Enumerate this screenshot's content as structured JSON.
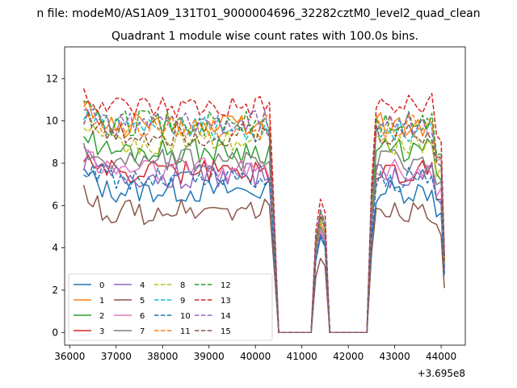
{
  "chart_data": {
    "type": "line",
    "suptitle": "n file: modeM0/AS1A09_131T01_9000004696_32282cztM0_level2_quad_clean",
    "title": "Quadrant 1 module wise count rates with 100.0s bins.",
    "xlabel": "",
    "ylabel": "",
    "x_offset_label": "+3.695e8",
    "xlim": [
      35890,
      44520
    ],
    "ylim": [
      -0.6,
      13.5
    ],
    "xticks": [
      36000,
      37000,
      38000,
      39000,
      40000,
      41000,
      42000,
      43000,
      44000
    ],
    "yticks": [
      0,
      2,
      4,
      6,
      8,
      10,
      12
    ],
    "grid": false,
    "legend": {
      "placement": "lower-left",
      "columns": 5
    },
    "segments": [
      {
        "start": 36300,
        "end": 40400,
        "step": 100
      },
      {
        "start": 41300,
        "end": 41500,
        "step": 100
      },
      {
        "start": 42500,
        "end": 44000,
        "step": 100
      }
    ],
    "x_end": 44070,
    "series": [
      {
        "name": "0",
        "color": "#1f77b4",
        "dash": "solid",
        "level": 6.7,
        "gaplevel": 4.5,
        "endlevel": 2.7
      },
      {
        "name": "1",
        "color": "#ff7f0e",
        "dash": "solid",
        "level": 9.8,
        "gaplevel": 5.2,
        "endlevel": 3.4
      },
      {
        "name": "2",
        "color": "#2ca02c",
        "dash": "solid",
        "level": 8.6,
        "gaplevel": 5.0,
        "endlevel": 3.2
      },
      {
        "name": "3",
        "color": "#d62728",
        "dash": "solid",
        "level": 7.6,
        "gaplevel": 4.8,
        "endlevel": 3.0
      },
      {
        "name": "4",
        "color": "#9467bd",
        "dash": "solid",
        "level": 7.4,
        "gaplevel": 4.7,
        "endlevel": 2.9
      },
      {
        "name": "5",
        "color": "#8c564b",
        "dash": "solid",
        "level": 5.7,
        "gaplevel": 3.5,
        "endlevel": 2.1
      },
      {
        "name": "6",
        "color": "#e377c2",
        "dash": "solid",
        "level": 7.7,
        "gaplevel": 4.8,
        "endlevel": 3.0
      },
      {
        "name": "7",
        "color": "#7f7f7f",
        "dash": "solid",
        "level": 8.1,
        "gaplevel": 5.0,
        "endlevel": 3.1
      },
      {
        "name": "8",
        "color": "#bcbd22",
        "dash": "dashed",
        "level": 9.0,
        "gaplevel": 5.3,
        "endlevel": 3.3
      },
      {
        "name": "9",
        "color": "#17becf",
        "dash": "dashed",
        "level": 9.6,
        "gaplevel": 5.5,
        "endlevel": 3.5
      },
      {
        "name": "10",
        "color": "#1f77b4",
        "dash": "dashed",
        "level": 7.2,
        "gaplevel": 4.6,
        "endlevel": 2.8
      },
      {
        "name": "11",
        "color": "#ff7f0e",
        "dash": "dashed",
        "level": 9.7,
        "gaplevel": 5.6,
        "endlevel": 3.5
      },
      {
        "name": "12",
        "color": "#2ca02c",
        "dash": "dashed",
        "level": 9.9,
        "gaplevel": 5.7,
        "endlevel": 3.6
      },
      {
        "name": "13",
        "color": "#d62728",
        "dash": "dashed",
        "level": 10.7,
        "gaplevel": 6.3,
        "endlevel": 3.8
      },
      {
        "name": "14",
        "color": "#9467bd",
        "dash": "dashed",
        "level": 9.9,
        "gaplevel": 5.8,
        "endlevel": 3.6
      },
      {
        "name": "15",
        "color": "#8c564b",
        "dash": "dashed",
        "level": 9.4,
        "gaplevel": 5.5,
        "endlevel": 3.4
      }
    ]
  }
}
